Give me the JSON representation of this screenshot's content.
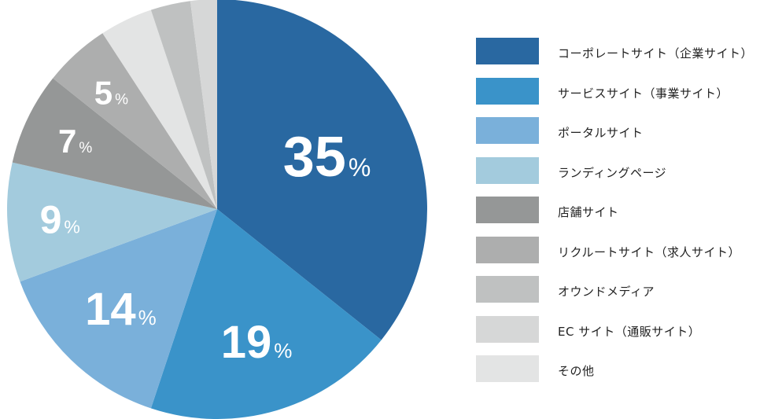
{
  "chart_data": {
    "type": "pie",
    "start_angle_deg": 0,
    "direction": "clockwise",
    "categories": [
      "コーポレートサイト（企業サイト）",
      "サービスサイト（事業サイト）",
      "ポータルサイト",
      "ランディングページ",
      "店舗サイト",
      "リクルートサイト（求人サイト）",
      "オウンドメディア",
      "EC サイト（通販サイト）",
      "その他"
    ],
    "values": [
      35,
      19,
      14,
      9,
      7,
      5,
      4,
      3,
      2
    ],
    "slice_labels": [
      "35",
      "19",
      "14",
      "9",
      "7",
      "5",
      "",
      "",
      ""
    ],
    "percent_sign": "%",
    "colors": [
      "#2968a1",
      "#3a93c9",
      "#7ab0da",
      "#a3cbdd",
      "#959797",
      "#adaeae",
      "#e3e4e4",
      "#bfc1c1",
      "#d6d7d7"
    ],
    "legend_colors": [
      "#2968a1",
      "#3a93c9",
      "#7ab0da",
      "#a3cbdd",
      "#959797",
      "#adaeae",
      "#bfc1c1",
      "#d6d7d7",
      "#e3e4e4"
    ],
    "legend_position": "right"
  }
}
